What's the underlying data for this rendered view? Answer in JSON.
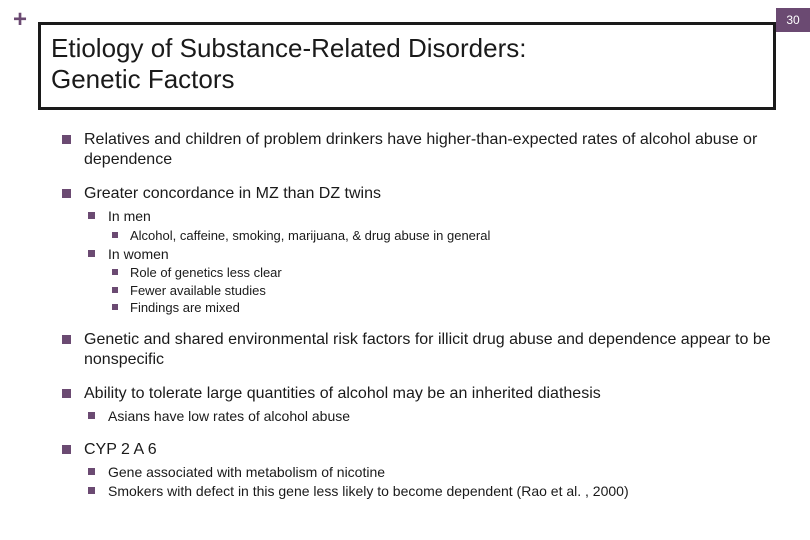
{
  "colors": {
    "accent": "#6b4a72",
    "text": "#1a1a1a",
    "background": "#ffffff",
    "border": "#1a1a1a"
  },
  "slide": {
    "plus": "+",
    "page_number": "30",
    "title_line1": "Etiology of Substance-Related Disorders:",
    "title_line2": "Genetic Factors"
  },
  "bullets": {
    "b1": "Relatives and children of problem drinkers have higher-than-expected rates of alcohol abuse or dependence",
    "b2": "Greater concordance in MZ than DZ twins",
    "b2_1": "In men",
    "b2_1_1": "Alcohol, caffeine, smoking, marijuana, & drug abuse in general",
    "b2_2": "In women",
    "b2_2_1": "Role of genetics less clear",
    "b2_2_2": "Fewer available studies",
    "b2_2_3": "Findings are mixed",
    "b3": "Genetic and shared environmental risk factors for illicit drug abuse and dependence appear to be nonspecific",
    "b4": "Ability to tolerate large quantities of alcohol may be an inherited diathesis",
    "b4_1": "Asians have low rates of alcohol abuse",
    "b5": "CYP 2 A 6",
    "b5_1": "Gene associated with metabolism of nicotine",
    "b5_2": "Smokers with defect in this gene less likely to become dependent (Rao et al. , 2000)"
  }
}
